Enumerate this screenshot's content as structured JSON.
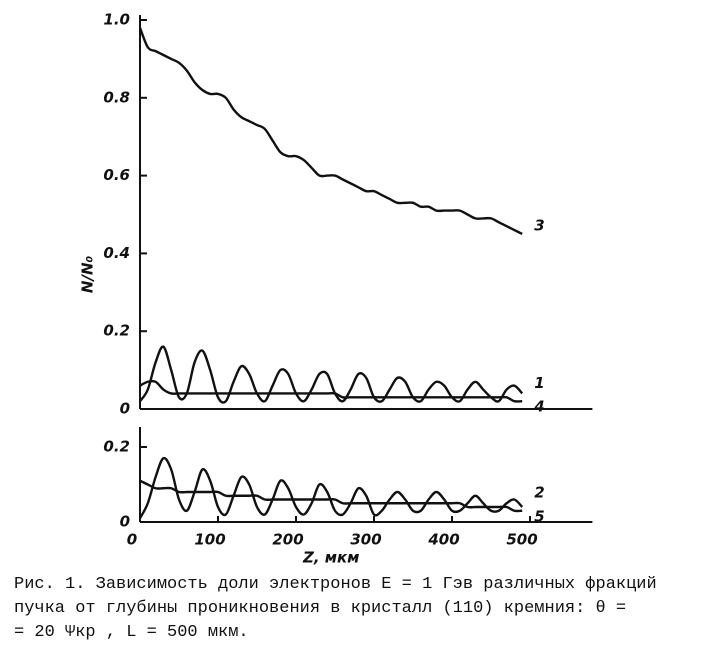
{
  "chart_data": [
    {
      "type": "line",
      "y_label": "N/N₀",
      "xlim": [
        0,
        580
      ],
      "ylim": [
        0,
        1.0
      ],
      "yticks": [
        0,
        0.2,
        0.4,
        0.6,
        0.8,
        {
          "value": 1,
          "label": "1.0"
        }
      ],
      "x": [
        0,
        10,
        20,
        30,
        40,
        50,
        60,
        70,
        80,
        90,
        100,
        110,
        120,
        130,
        140,
        150,
        160,
        170,
        180,
        190,
        200,
        210,
        220,
        230,
        240,
        250,
        260,
        270,
        280,
        290,
        300,
        310,
        320,
        330,
        340,
        350,
        360,
        370,
        380,
        390,
        400,
        410,
        420,
        430,
        440,
        450,
        460,
        470,
        480,
        490
      ],
      "series": [
        {
          "name": "3",
          "color": "#111",
          "values": [
            0.98,
            0.93,
            0.92,
            0.91,
            0.9,
            0.89,
            0.87,
            0.84,
            0.82,
            0.81,
            0.81,
            0.8,
            0.77,
            0.75,
            0.74,
            0.73,
            0.72,
            0.69,
            0.66,
            0.65,
            0.65,
            0.64,
            0.62,
            0.6,
            0.6,
            0.6,
            0.59,
            0.58,
            0.57,
            0.56,
            0.56,
            0.55,
            0.54,
            0.53,
            0.53,
            0.53,
            0.52,
            0.52,
            0.51,
            0.51,
            0.51,
            0.51,
            0.5,
            0.49,
            0.49,
            0.49,
            0.48,
            0.47,
            0.46,
            0.45
          ]
        },
        {
          "name": "1",
          "color": "#111",
          "values": [
            0.02,
            0.05,
            0.12,
            0.16,
            0.1,
            0.03,
            0.04,
            0.12,
            0.15,
            0.1,
            0.03,
            0.02,
            0.07,
            0.11,
            0.09,
            0.04,
            0.02,
            0.06,
            0.1,
            0.09,
            0.04,
            0.02,
            0.05,
            0.09,
            0.09,
            0.04,
            0.02,
            0.05,
            0.09,
            0.08,
            0.03,
            0.02,
            0.05,
            0.08,
            0.07,
            0.03,
            0.02,
            0.05,
            0.07,
            0.06,
            0.03,
            0.02,
            0.05,
            0.07,
            0.05,
            0.03,
            0.02,
            0.05,
            0.06,
            0.04
          ]
        },
        {
          "name": "4",
          "color": "#111",
          "values": [
            0.06,
            0.07,
            0.07,
            0.05,
            0.04,
            0.04,
            0.04,
            0.04,
            0.04,
            0.04,
            0.04,
            0.04,
            0.04,
            0.04,
            0.04,
            0.04,
            0.04,
            0.04,
            0.04,
            0.04,
            0.04,
            0.04,
            0.04,
            0.04,
            0.04,
            0.04,
            0.03,
            0.03,
            0.03,
            0.03,
            0.03,
            0.03,
            0.03,
            0.03,
            0.03,
            0.03,
            0.03,
            0.03,
            0.03,
            0.03,
            0.03,
            0.03,
            0.03,
            0.03,
            0.03,
            0.03,
            0.03,
            0.03,
            0.02,
            0.02
          ]
        }
      ]
    },
    {
      "type": "line",
      "x_label": "Z, мкм",
      "xlim": [
        0,
        580
      ],
      "ylim": [
        0,
        0.24
      ],
      "yticks": [
        0,
        0.2
      ],
      "xticks": [
        0,
        100,
        200,
        300,
        400,
        500
      ],
      "x": [
        0,
        10,
        20,
        30,
        40,
        50,
        60,
        70,
        80,
        90,
        100,
        110,
        120,
        130,
        140,
        150,
        160,
        170,
        180,
        190,
        200,
        210,
        220,
        230,
        240,
        250,
        260,
        270,
        280,
        290,
        300,
        310,
        320,
        330,
        340,
        350,
        360,
        370,
        380,
        390,
        400,
        410,
        420,
        430,
        440,
        450,
        460,
        470,
        480,
        490
      ],
      "series": [
        {
          "name": "2",
          "color": "#111",
          "values": [
            0.01,
            0.05,
            0.12,
            0.17,
            0.14,
            0.06,
            0.03,
            0.08,
            0.14,
            0.11,
            0.04,
            0.02,
            0.07,
            0.12,
            0.1,
            0.04,
            0.02,
            0.06,
            0.11,
            0.09,
            0.04,
            0.02,
            0.05,
            0.1,
            0.08,
            0.03,
            0.02,
            0.05,
            0.09,
            0.07,
            0.02,
            0.03,
            0.06,
            0.08,
            0.06,
            0.03,
            0.03,
            0.06,
            0.08,
            0.06,
            0.03,
            0.03,
            0.05,
            0.07,
            0.05,
            0.03,
            0.03,
            0.05,
            0.06,
            0.04
          ]
        },
        {
          "name": "5",
          "color": "#111",
          "values": [
            0.11,
            0.1,
            0.09,
            0.09,
            0.09,
            0.08,
            0.08,
            0.08,
            0.08,
            0.08,
            0.08,
            0.07,
            0.07,
            0.07,
            0.07,
            0.07,
            0.06,
            0.06,
            0.06,
            0.06,
            0.06,
            0.06,
            0.06,
            0.06,
            0.06,
            0.06,
            0.05,
            0.05,
            0.05,
            0.05,
            0.05,
            0.05,
            0.05,
            0.05,
            0.05,
            0.05,
            0.05,
            0.05,
            0.05,
            0.05,
            0.05,
            0.05,
            0.04,
            0.04,
            0.04,
            0.04,
            0.04,
            0.04,
            0.03,
            0.03
          ]
        }
      ]
    }
  ],
  "caption": [
    "Рис. 1. Зависимость доли электронов E = 1 Гэв различных фракций",
    "пучка от глубины проникновения в кристалл (110) кремния: θ =",
    "= 20 Ψкр , L = 500 мкм."
  ]
}
